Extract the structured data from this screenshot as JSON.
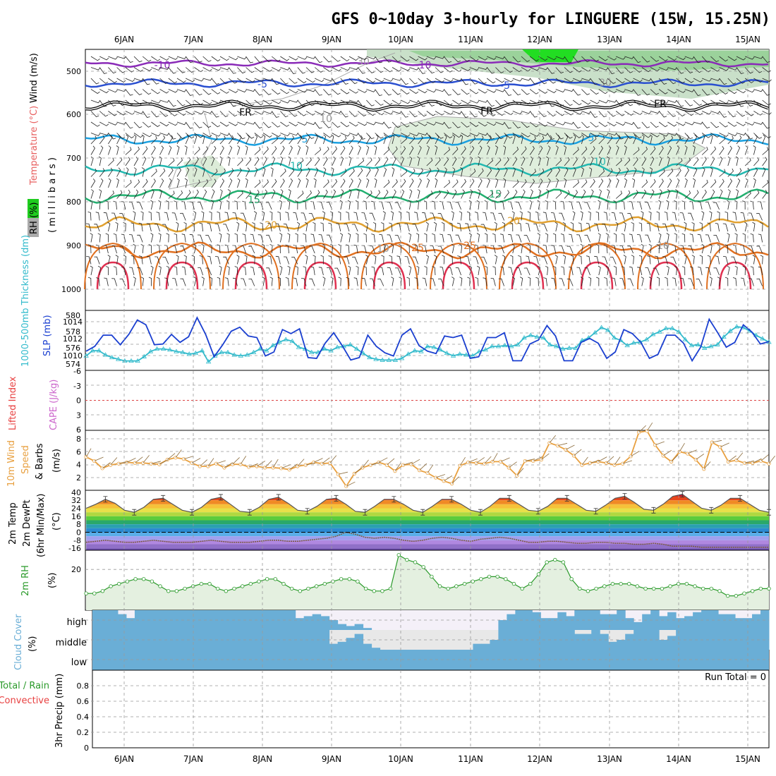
{
  "title": "GFS 0~10day 3-hourly for LINGUERE (15W, 15.25N)",
  "dates": [
    "6JAN",
    "7JAN",
    "8JAN",
    "9JAN",
    "10JAN",
    "11JAN",
    "12JAN",
    "13JAN",
    "14JAN",
    "15JAN"
  ],
  "colors": {
    "panel_border": "#000000",
    "grid": "#999999",
    "slp": "#1a3fd0",
    "thickness": "#33bbcc",
    "wind10m": "#e8a040",
    "rh2m": "#2a9a2a",
    "rh_fill": "#e4f0e0",
    "cloud": "#6aaed6",
    "cloud_bg": "#f4f0f8",
    "cloud_mid_bg": "#e8e8e8",
    "lifted_zero": "#dd4444"
  },
  "upper_panel": {
    "ylabel_rh": "RH (%)",
    "ylabel_temp": "Temperature (°C)",
    "ylabel_wind": "Wind (m/s)",
    "ylabel_mb": "( m i l l i b a r s )",
    "pressure_ticks": [
      "500",
      "600",
      "700",
      "800",
      "900",
      "1000"
    ],
    "contour_labels": [
      {
        "text": "-10",
        "color": "#8a2bb8"
      },
      {
        "text": "-10",
        "color": "#8a2bb8"
      },
      {
        "text": "-5",
        "color": "#2a4fd0"
      },
      {
        "text": "-5",
        "color": "#2a4fd0"
      },
      {
        "text": "FR",
        "color": "#000000"
      },
      {
        "text": "FR",
        "color": "#000000"
      },
      {
        "text": "FR",
        "color": "#000000"
      },
      {
        "text": "5",
        "color": "#1aa0e0"
      },
      {
        "text": "5",
        "color": "#1aa0e0"
      },
      {
        "text": "10",
        "color": "#22b8b0"
      },
      {
        "text": "10",
        "color": "#22b8b0"
      },
      {
        "text": "15",
        "color": "#22b070"
      },
      {
        "text": "15",
        "color": "#22b070"
      },
      {
        "text": "20",
        "color": "#e0a030"
      },
      {
        "text": "20",
        "color": "#e0a030"
      },
      {
        "text": "25",
        "color": "#e07020"
      },
      {
        "text": "25",
        "color": "#e07020"
      },
      {
        "text": "30",
        "color": "#999999"
      },
      {
        "text": "30",
        "color": "#999999"
      },
      {
        "text": "10",
        "color": "#999999"
      },
      {
        "text": "10",
        "color": "#999999"
      },
      {
        "text": "10",
        "color": "#999999"
      }
    ]
  },
  "slp_panel": {
    "ylabel_thickness": "1000-500mb Thickness (dm)",
    "ylabel_slp": "SLP (mb)",
    "thickness_ticks": [
      "580",
      "578",
      "576",
      "574"
    ],
    "slp_ticks": [
      "1014",
      "1012",
      "1010"
    ]
  },
  "li_panel": {
    "ylabel_li": "Lifted Index",
    "ylabel_cape": "CAPE (J/kg)",
    "ticks": [
      "-6",
      "-3",
      "0",
      "3",
      "6"
    ]
  },
  "wind_panel": {
    "ylabel_1": "10m Wind",
    "ylabel_2": "Speed",
    "ylabel_3": "& Barbs",
    "ylabel_unit": "(m/s)",
    "ticks": [
      "8",
      "6",
      "4",
      "2"
    ]
  },
  "temp_panel": {
    "ylabel_1": "2m Temp",
    "ylabel_2": "2m DewPt",
    "ylabel_3": "(6hr Min/Max)",
    "ylabel_unit": "(°C)",
    "ticks": [
      "40",
      "32",
      "24",
      "16",
      "8",
      "0",
      "-8",
      "-16"
    ]
  },
  "rh_panel": {
    "ylabel": "2m RH",
    "ylabel_unit": "(%)",
    "ticks": [
      "20"
    ]
  },
  "cloud_panel": {
    "ylabel": "Cloud Cover",
    "ylabel_unit": "(%)",
    "levels": [
      "high",
      "middle",
      "low"
    ]
  },
  "precip_panel": {
    "ylabel_total": "Total / Rain",
    "ylabel_conv": "Convective",
    "ylabel_main": "3hr Precip (mm)",
    "ticks": [
      "0.8",
      "0.6",
      "0.4",
      "0.2",
      "0"
    ],
    "run_total": "Run Total = 0"
  },
  "chart_data": [
    {
      "type": "line",
      "title": "",
      "series": [
        {
          "name": "SLP (mb)",
          "ylim": [
            1008,
            1015.5
          ],
          "values": [
            1010.4,
            1011,
            1012.4,
            1012.4,
            1011.2,
            1012.5,
            1014.3,
            1013.7,
            1011.2,
            1011.3,
            1012.5,
            1011.5,
            1012.2,
            1014.6,
            1012.5,
            1009.7,
            1011.2,
            1012.9,
            1013.4,
            1012.3,
            1012.1,
            1009.8,
            1010.3,
            1013.1,
            1012.6,
            1013.2,
            1009.6,
            1009.5,
            1011.4,
            1012.7,
            1011.1,
            1009.3,
            1009.6,
            1012.4,
            1011,
            1010.2,
            1009.8,
            1012.4,
            1013.2,
            1011.1,
            1010.4,
            1010.1,
            1012.3,
            1012.1,
            1012.4,
            1009.5,
            1009.7,
            1012.1,
            1012.1,
            1012.7,
            1009.2,
            1009.2,
            1011.3,
            1011.8,
            1013.6,
            1012.3,
            1009.2,
            1009.2,
            1011.5,
            1012,
            1011.4,
            1009.5,
            1010.3,
            1013.1,
            1012.6,
            1011.5,
            1009.5,
            1010,
            1012.4,
            1012.4,
            1011.4,
            1009.2,
            1010.9,
            1014.4,
            1012.7,
            1010.9,
            1011.5,
            1013.7,
            1012.8,
            1011.3,
            1011.6
          ]
        },
        {
          "name": "1000-500mb Thickness (dm)",
          "ylim": [
            573.5,
            580.5
          ],
          "values": [
            575.2,
            575.8,
            575.8,
            575.3,
            575,
            574.8,
            574.6,
            574.6,
            574.6,
            575.1,
            575.7,
            576,
            576,
            575.9,
            575.7,
            575.6,
            575.4,
            575.5,
            575.8,
            574.5,
            575.2,
            575.6,
            575.6,
            575.3,
            575.2,
            575.3,
            575.6,
            576,
            575.8,
            576.4,
            576.8,
            577.1,
            576.9,
            576.2,
            576,
            575.6,
            575.6,
            576,
            575.8,
            576.2,
            576.3,
            576.5,
            576,
            575.5,
            575,
            574.8,
            574.7,
            574.7,
            574.7,
            574.9,
            575.4,
            575.8,
            575.7,
            576.3,
            576.2,
            575.9,
            575.5,
            575.2,
            575.4,
            575.3,
            575.2,
            575.7,
            575.9,
            576.3,
            576.3,
            576.4,
            576.3,
            576.5,
            577.3,
            577.6,
            577.4,
            577.3,
            576.5,
            576.3,
            576,
            576.1,
            576.1,
            577,
            577.3,
            577.9,
            578.5,
            578.2,
            577.3,
            577,
            576.4,
            576.7,
            576.8,
            577.1,
            577.7,
            578,
            578.4,
            578.4,
            578,
            577.1,
            576.4,
            576.5,
            576.1,
            576.3,
            576.5,
            577.4,
            578.1,
            578.6,
            578.5,
            578.1,
            577.6,
            577.2,
            576.8
          ]
        }
      ],
      "ylabel": "SLP (mb)"
    },
    {
      "type": "line",
      "title": "",
      "ylabel": "(m/s)",
      "ylim": [
        0,
        9
      ],
      "series": [
        {
          "name": "10m Wind Speed",
          "values": [
            5,
            4.4,
            3.3,
            3.8,
            4,
            4.2,
            4.1,
            4.1,
            4,
            3.9,
            4.6,
            4.9,
            4.7,
            4.1,
            3.6,
            3.6,
            4,
            3.4,
            3.9,
            3.9,
            3.5,
            3.6,
            3.4,
            3.4,
            3.3,
            3.1,
            3.6,
            3.8,
            4.2,
            4,
            4.1,
            2.4,
            0.6,
            2.5,
            3.4,
            3.8,
            4.2,
            3.8,
            2.9,
            3.8,
            3.9,
            3,
            2.6,
            1.9,
            1.4,
            1,
            3.7,
            4.2,
            4.1,
            4,
            4.3,
            4.3,
            3.4,
            2.2,
            4.4,
            4.4,
            4.6,
            7.1,
            6.7,
            6.1,
            5.2,
            3.8,
            4.1,
            4.3,
            4.1,
            3.8,
            4,
            5.1,
            8.7,
            8.9,
            6.8,
            5.2,
            4.3,
            5.8,
            5.5,
            4.6,
            3.2,
            7.2,
            6.5,
            4.3,
            4.5,
            4.1,
            4.1,
            4.4,
            4
          ]
        }
      ]
    },
    {
      "type": "line",
      "title": "",
      "ylabel": "(°C)",
      "ylim": [
        -18,
        42
      ],
      "series": [
        {
          "name": "2m Temp",
          "values": [
            24,
            28,
            33,
            29,
            22,
            20,
            25,
            33,
            34,
            28,
            22,
            20,
            25,
            33,
            35,
            28,
            21,
            20,
            25,
            33,
            35,
            29,
            22,
            21,
            26,
            33,
            34,
            28,
            21,
            20,
            26,
            33,
            33,
            28,
            22,
            20,
            26,
            33,
            33,
            28,
            22,
            20,
            26,
            34,
            34,
            28,
            22,
            21,
            26,
            34,
            34,
            28,
            22,
            21,
            27,
            34,
            36,
            30,
            23,
            22,
            28,
            36,
            38,
            31,
            24,
            22,
            27,
            34,
            34,
            28,
            22,
            20
          ]
        },
        {
          "name": "2m DewPt",
          "values": [
            -10,
            -9,
            -8,
            -9,
            -10,
            -10,
            -9,
            -8,
            -9,
            -10,
            -10,
            -10,
            -9,
            -8,
            -9,
            -10,
            -10,
            -10,
            -9,
            -8,
            -8,
            -9,
            -9,
            -8,
            -7,
            -6,
            -4,
            0,
            -2,
            -5,
            -6,
            -5,
            -6,
            -8,
            -9,
            -8,
            -6,
            -5,
            -6,
            -8,
            -9,
            -7,
            -6,
            -5,
            -6,
            -8,
            -10,
            -10,
            -9,
            -9,
            -10,
            -11,
            -11,
            -10,
            -10,
            -11,
            -11,
            -12,
            -12,
            -11,
            -12,
            -14,
            -14,
            -14,
            -15,
            -15,
            -15,
            -15,
            -15,
            -15,
            -15,
            -15
          ]
        }
      ]
    },
    {
      "type": "area",
      "title": "",
      "ylabel": "(%)",
      "ylim": [
        3,
        28
      ],
      "series": [
        {
          "name": "2m RH",
          "values": [
            10,
            10,
            11,
            13,
            14,
            15,
            16,
            16,
            15,
            13,
            11,
            11,
            12,
            13,
            14,
            14,
            12,
            11,
            12,
            13,
            14,
            15,
            16,
            16,
            14,
            12,
            11,
            12,
            13,
            14,
            15,
            16,
            16,
            15,
            12,
            11,
            11,
            12,
            26,
            24,
            23,
            21,
            17,
            13,
            12,
            13,
            14,
            15,
            16,
            17,
            17,
            16,
            14,
            12,
            14,
            18,
            23,
            24,
            23,
            16,
            12,
            11,
            12,
            13,
            14,
            14,
            14,
            13,
            12,
            12,
            12,
            13,
            14,
            14,
            13,
            12,
            12,
            11,
            9,
            9,
            10,
            11,
            12,
            12
          ]
        }
      ]
    },
    {
      "type": "bar",
      "title": "",
      "ylabel": "3hr Precip (mm)",
      "ylim": [
        0,
        1
      ],
      "categories": [
        "6JAN",
        "7JAN",
        "8JAN",
        "9JAN",
        "10JAN",
        "11JAN",
        "12JAN",
        "13JAN",
        "14JAN",
        "15JAN"
      ],
      "values": [
        0,
        0,
        0,
        0,
        0,
        0,
        0,
        0,
        0,
        0
      ]
    }
  ]
}
